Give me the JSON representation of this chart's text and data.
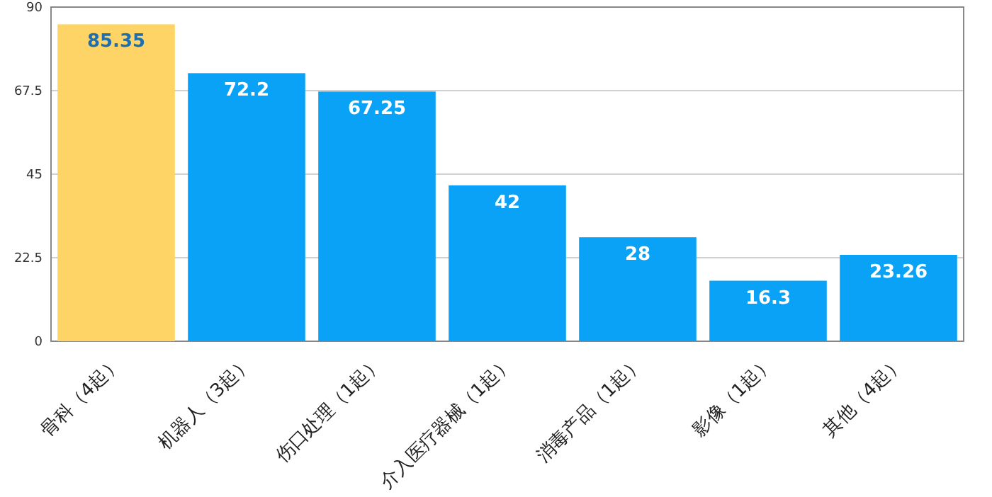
{
  "chart_data": {
    "type": "bar",
    "categories": [
      "骨科（4起）",
      "机器人（3起）",
      "伤口处理（1起）",
      "介入医疗器械（1起）",
      "消毒产品（1起）",
      "影像（1起）",
      "其他（4起）"
    ],
    "values": [
      85.35,
      72.2,
      67.25,
      42,
      28,
      16.3,
      23.26
    ],
    "colors": [
      "#ffd466",
      "#0aa2f7",
      "#0aa2f7",
      "#0aa2f7",
      "#0aa2f7",
      "#0aa2f7",
      "#0aa2f7"
    ],
    "ylim": [
      0,
      90
    ],
    "yticks": [
      0,
      22.5,
      45,
      67.5,
      90
    ],
    "grid": "y",
    "data_labels": true
  }
}
